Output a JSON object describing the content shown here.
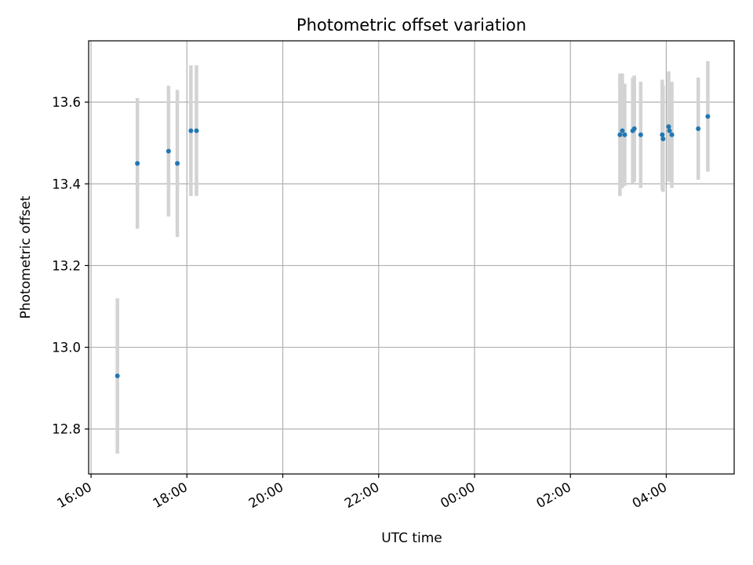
{
  "chart_data": {
    "type": "scatter",
    "title": "Photometric offset variation",
    "xlabel": "UTC time",
    "ylabel": "Photometric offset",
    "xlim": [
      "15:57",
      "05:25"
    ],
    "ylim": [
      12.69,
      13.75
    ],
    "grid": true,
    "legend": "none",
    "x_ticks": [
      "16:00",
      "18:00",
      "20:00",
      "22:00",
      "00:00",
      "02:00",
      "04:00"
    ],
    "y_ticks": [
      "12.8",
      "13.0",
      "13.2",
      "13.4",
      "13.6"
    ],
    "colors": {
      "point": "#1f77b4",
      "errorbar": "#d3d3d3",
      "grid": "#b0b0b0"
    },
    "points": [
      {
        "time": "16:33",
        "y": 12.93,
        "err": 0.19
      },
      {
        "time": "16:58",
        "y": 13.45,
        "err": 0.16
      },
      {
        "time": "17:37",
        "y": 13.48,
        "err": 0.16
      },
      {
        "time": "17:48",
        "y": 13.45,
        "err": 0.18
      },
      {
        "time": "18:05",
        "y": 13.53,
        "err": 0.16
      },
      {
        "time": "18:12",
        "y": 13.53,
        "err": 0.16
      },
      {
        "time": "03:02",
        "y": 13.52,
        "err": 0.15
      },
      {
        "time": "03:05",
        "y": 13.53,
        "err": 0.14
      },
      {
        "time": "03:08",
        "y": 13.52,
        "err": 0.125
      },
      {
        "time": "03:18",
        "y": 13.53,
        "err": 0.13
      },
      {
        "time": "03:20",
        "y": 13.535,
        "err": 0.13
      },
      {
        "time": "03:28",
        "y": 13.52,
        "err": 0.13
      },
      {
        "time": "03:55",
        "y": 13.52,
        "err": 0.135
      },
      {
        "time": "03:56",
        "y": 13.51,
        "err": 0.13
      },
      {
        "time": "04:03",
        "y": 13.54,
        "err": 0.135
      },
      {
        "time": "04:04",
        "y": 13.53,
        "err": 0.12
      },
      {
        "time": "04:07",
        "y": 13.52,
        "err": 0.13
      },
      {
        "time": "04:40",
        "y": 13.535,
        "err": 0.125
      },
      {
        "time": "04:52",
        "y": 13.565,
        "err": 0.135
      }
    ]
  }
}
